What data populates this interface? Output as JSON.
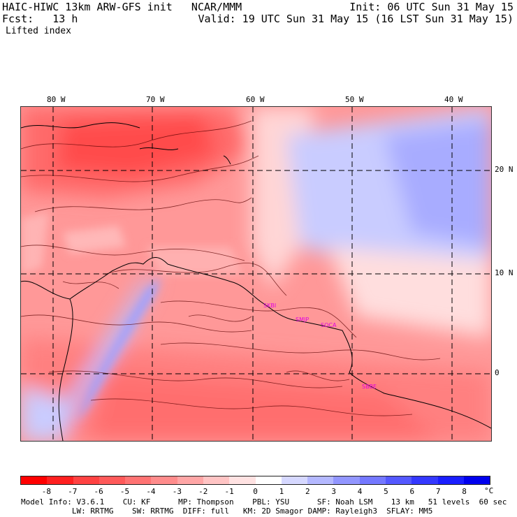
{
  "header": {
    "title_left": "HAIC-HIWC 13km ARW-GFS init   NCAR/MMM",
    "fcst": "Fcst:   13 h",
    "field": "Lifted index",
    "init": "Init: 06 UTC Sun 31 May 15",
    "valid": "Valid: 19 UTC Sun 31 May 15 (16 LST Sun 31 May 15)"
  },
  "map": {
    "lon_labels": [
      "80 W",
      "70 W",
      "60 W",
      "50 W",
      "40 W"
    ],
    "lat_labels": [
      "20 N",
      "10 N",
      "0"
    ],
    "stations": [
      "SKBI",
      "SMJP",
      "SOCA",
      "SBBE"
    ]
  },
  "colorbar": {
    "unit": "°C",
    "ticks": [
      "-8",
      "-7",
      "-6",
      "-5",
      "-4",
      "-3",
      "-2",
      "-1",
      "0",
      "1",
      "2",
      "3",
      "4",
      "5",
      "6",
      "7",
      "8"
    ],
    "colors": [
      "#ff0000",
      "#ff2020",
      "#ff4242",
      "#ff5a5a",
      "#ff7373",
      "#ff8c8c",
      "#ffa6a6",
      "#ffc4c4",
      "#ffe2e2",
      "#ffffff",
      "#d6d8ff",
      "#b4b8ff",
      "#9296ff",
      "#7478ff",
      "#5458ff",
      "#3438ff",
      "#1a1eff",
      "#0000ee"
    ]
  },
  "footer": {
    "line1": "Model Info: V3.6.1    CU: KF      MP: Thompson    PBL: YSU      SF: Noah LSM    13 km   51 levels  60 sec",
    "line2": "           LW: RRTMG    SW: RRTMG  DIFF: full   KM: 2D Smagor DAMP: Rayleigh3  SFLAY: MM5"
  }
}
